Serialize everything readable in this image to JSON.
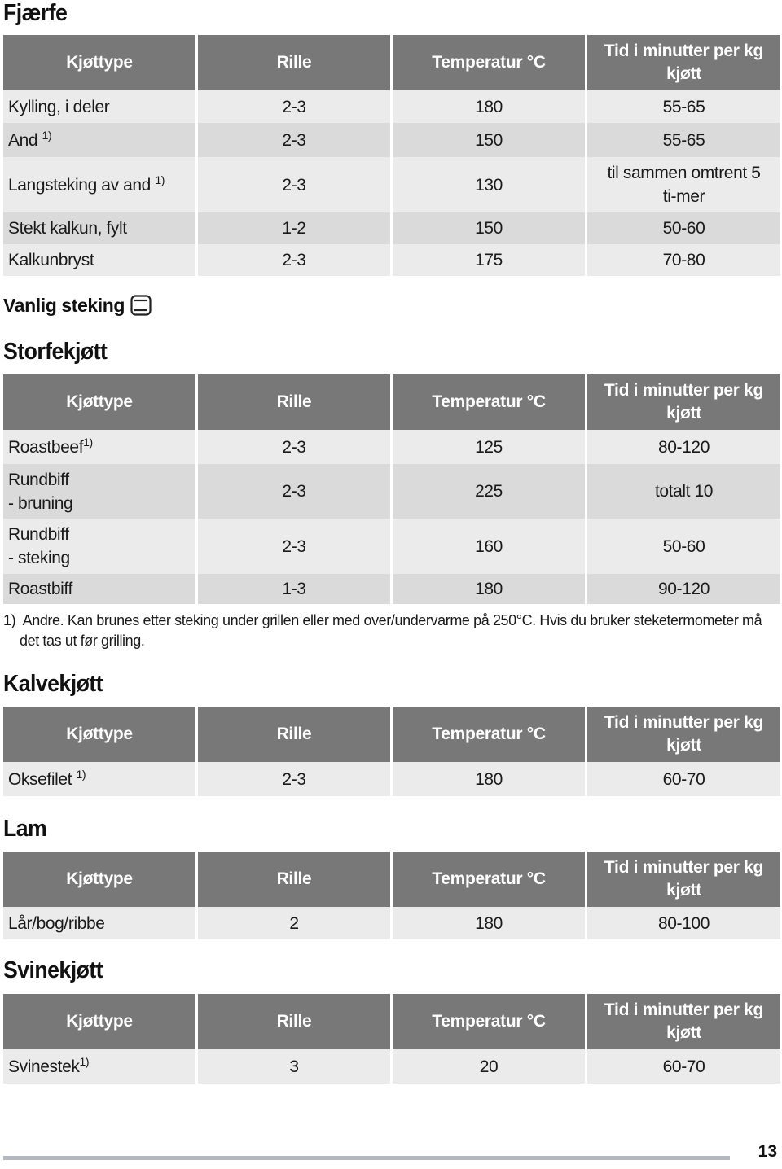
{
  "columns": {
    "c1": "Kjøttype",
    "c2": "Rille",
    "c3": "Temperatur °C",
    "c4": "Tid i minutter per kg kjøtt"
  },
  "fjaerfe": {
    "title": "Fjærfe",
    "rows": [
      {
        "type": "Kylling, i deler",
        "sup": "",
        "rille": "2-3",
        "temp": "180",
        "time": "55-65"
      },
      {
        "type": "And",
        "sup": "1)",
        "rille": "2-3",
        "temp": "150",
        "time": "55-65"
      },
      {
        "type": "Langsteking av and",
        "sup": "1)",
        "rille": "2-3",
        "temp": "130",
        "time": "til sammen omtrent 5 ti-mer"
      },
      {
        "type": "Stekt kalkun, fylt",
        "sup": "",
        "rille": "1-2",
        "temp": "150",
        "time": "50-60"
      },
      {
        "type": "Kalkunbryst",
        "sup": "",
        "rille": "2-3",
        "temp": "175",
        "time": "70-80"
      }
    ]
  },
  "vanlig_steking": {
    "label": "Vanlig steking",
    "icon": "oven-conventional-icon"
  },
  "storfekjott": {
    "title": "Storfekjøtt",
    "rows": [
      {
        "type": "Roastbeef",
        "sup": "1)",
        "rille": "2-3",
        "temp": "125",
        "time": "80-120"
      },
      {
        "type": "Rundbiff - bruning",
        "sup": "",
        "rille": "2-3",
        "temp": "225",
        "time": "totalt 10"
      },
      {
        "type": "Rundbiff - steking",
        "sup": "",
        "rille": "2-3",
        "temp": "160",
        "time": "50-60"
      },
      {
        "type": "Roastbiff",
        "sup": "",
        "rille": "1-3",
        "temp": "180",
        "time": "90-120"
      }
    ],
    "footnote_num": "1)",
    "footnote_line1": "Andre. Kan brunes etter steking under grillen eller med over/undervarme på 250°C. Hvis du bruker steketermometer må",
    "footnote_line2": "det tas ut før grilling."
  },
  "kalvekjott": {
    "title": "Kalvekjøtt",
    "rows": [
      {
        "type": "Oksefilet",
        "sup": "1)",
        "rille": "2-3",
        "temp": "180",
        "time": "60-70"
      }
    ]
  },
  "lam": {
    "title": "Lam",
    "rows": [
      {
        "type": "Lår/bog/ribbe",
        "sup": "",
        "rille": "2",
        "temp": "180",
        "time": "80-100"
      }
    ]
  },
  "svinekjott": {
    "title": "Svinekjøtt",
    "rows": [
      {
        "type": "Svinestek",
        "sup": "1)",
        "rille": "3",
        "temp": "20",
        "time": "60-70"
      }
    ]
  },
  "page_number": "13"
}
